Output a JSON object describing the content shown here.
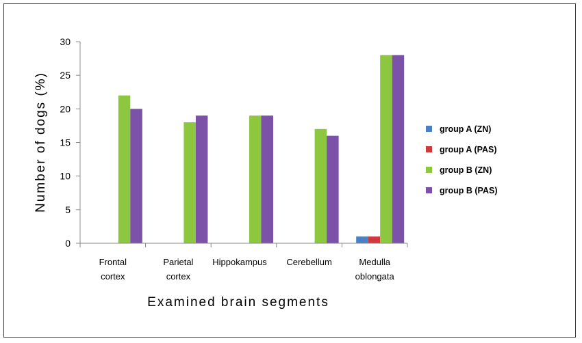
{
  "chart_data": {
    "type": "bar",
    "title": "",
    "xlabel": "Examined brain segments",
    "ylabel": "Number of dogs (%)",
    "ylim": [
      0,
      30
    ],
    "yticks": [
      0,
      5,
      10,
      15,
      20,
      25,
      30
    ],
    "categories": [
      [
        "Frontal",
        "cortex"
      ],
      [
        "Parietal",
        "cortex"
      ],
      [
        "Hippokampus"
      ],
      [
        "Cerebellum"
      ],
      [
        "Medulla",
        "oblongata"
      ]
    ],
    "series": [
      {
        "name": "group A  (ZN)",
        "color": "#4a7fc1",
        "values": [
          0,
          0,
          0,
          0,
          1
        ]
      },
      {
        "name": "group A  (PAS)",
        "color": "#d0393b",
        "values": [
          0,
          0,
          0,
          0,
          1
        ]
      },
      {
        "name": "group B  (ZN)",
        "color": "#8dc63f",
        "values": [
          22,
          18,
          19,
          17,
          28
        ]
      },
      {
        "name": "group B  (PAS)",
        "color": "#7b52a8",
        "values": [
          20,
          19,
          19,
          16,
          28
        ]
      }
    ],
    "legend_position": "right",
    "grid": false
  }
}
